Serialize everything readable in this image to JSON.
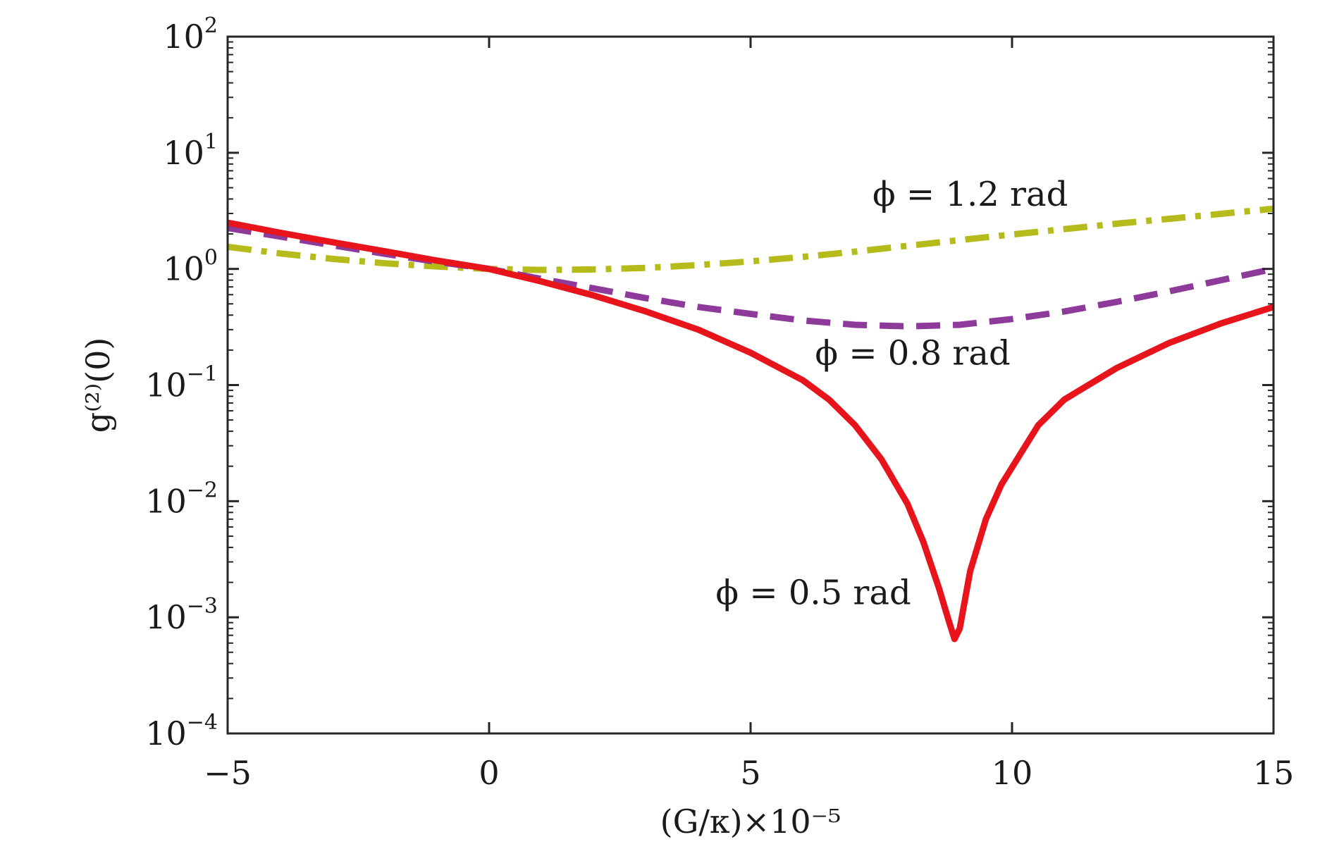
{
  "chart_data": {
    "type": "line",
    "xlabel": "(G/κ)×10⁻⁵",
    "ylabel": "g⁽²⁾(0)",
    "xlim": [
      -5,
      15
    ],
    "ylim": [
      0.0001,
      100
    ],
    "yscale": "log",
    "grid": false,
    "x_ticks": [
      {
        "value": -5,
        "label": "−5"
      },
      {
        "value": 0,
        "label": "0"
      },
      {
        "value": 5,
        "label": "5"
      },
      {
        "value": 10,
        "label": "10"
      },
      {
        "value": 15,
        "label": "15"
      }
    ],
    "y_ticks": [
      {
        "value": 100,
        "base": "10",
        "exp": "2"
      },
      {
        "value": 10,
        "base": "10",
        "exp": "1"
      },
      {
        "value": 1,
        "base": "10",
        "exp": "0"
      },
      {
        "value": 0.1,
        "base": "10",
        "exp": "−1"
      },
      {
        "value": 0.01,
        "base": "10",
        "exp": "−2"
      },
      {
        "value": 0.001,
        "base": "10",
        "exp": "−3"
      },
      {
        "value": 0.0001,
        "base": "10",
        "exp": "−4"
      }
    ],
    "series": [
      {
        "name": "ϕ = 1.2 rad",
        "color": "#b5bb1b",
        "style": "dash-dot",
        "x": [
          -5,
          -4,
          -3,
          -2,
          -1,
          0,
          1,
          2,
          3,
          4,
          5,
          6,
          7,
          8,
          9,
          10,
          11,
          12,
          13,
          14,
          15
        ],
        "y": [
          1.55,
          1.36,
          1.22,
          1.12,
          1.05,
          1.0,
          0.98,
          0.99,
          1.02,
          1.08,
          1.16,
          1.27,
          1.41,
          1.58,
          1.77,
          1.98,
          2.2,
          2.45,
          2.7,
          2.98,
          3.3
        ]
      },
      {
        "name": "ϕ = 0.8 rad",
        "color": "#8e3a9a",
        "style": "dashed",
        "x": [
          -5,
          -4,
          -3,
          -2,
          -1,
          0,
          1,
          2,
          3,
          4,
          5,
          6,
          7,
          8,
          9,
          10,
          11,
          12,
          13,
          14,
          15
        ],
        "y": [
          2.25,
          1.9,
          1.6,
          1.35,
          1.15,
          1.0,
          0.82,
          0.68,
          0.56,
          0.47,
          0.41,
          0.36,
          0.33,
          0.32,
          0.33,
          0.37,
          0.43,
          0.52,
          0.64,
          0.8,
          1.0
        ]
      },
      {
        "name": "ϕ = 0.5 rad",
        "color": "#e8141b",
        "style": "solid",
        "x": [
          -5,
          -4,
          -3,
          -2,
          -1,
          0,
          1,
          2,
          3,
          4,
          5,
          6,
          6.5,
          7,
          7.5,
          8,
          8.3,
          8.6,
          8.8,
          8.9,
          9.0,
          9.2,
          9.5,
          9.8,
          10.5,
          11,
          12,
          13,
          14,
          15
        ],
        "y": [
          2.5,
          2.05,
          1.7,
          1.42,
          1.18,
          1.0,
          0.78,
          0.59,
          0.43,
          0.3,
          0.19,
          0.11,
          0.075,
          0.045,
          0.023,
          0.0095,
          0.0045,
          0.0018,
          0.0009,
          0.00065,
          0.0008,
          0.0025,
          0.007,
          0.014,
          0.045,
          0.075,
          0.14,
          0.23,
          0.34,
          0.47
        ]
      }
    ],
    "annotations": [
      {
        "text": "ϕ = 1.2 rad",
        "series": 0,
        "x": 9.2,
        "y": 3.5
      },
      {
        "text": "ϕ = 0.8 rad",
        "series": 1,
        "x": 8.1,
        "y": 0.15
      },
      {
        "text": "ϕ = 0.5 rad",
        "series": 2,
        "x": 6.2,
        "y": 0.0013
      }
    ]
  }
}
